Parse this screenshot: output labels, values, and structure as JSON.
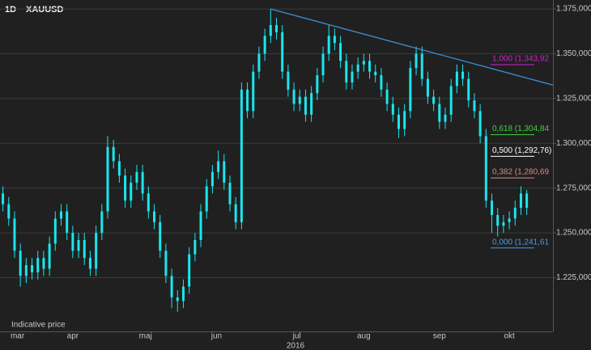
{
  "chart_data": {
    "type": "candlestick",
    "interval": "1D",
    "title": "XAUUSD",
    "note": "Indicative price",
    "x_label": "2016",
    "color": "#19e6ee",
    "x": [
      0,
      1,
      2,
      3,
      4,
      5,
      6,
      7,
      8,
      9,
      10,
      11,
      12,
      13,
      14,
      15,
      16,
      17,
      18,
      19,
      20,
      21,
      22,
      23,
      24,
      25,
      26,
      27,
      28,
      29,
      30,
      31,
      32,
      33,
      34,
      35,
      36,
      37,
      38,
      39,
      40,
      41,
      42,
      43,
      44,
      45,
      46,
      47,
      48,
      49,
      50,
      51,
      52,
      53,
      54,
      55,
      56,
      57,
      58,
      59,
      60,
      61,
      62,
      63,
      64,
      65,
      66,
      67,
      68,
      69,
      70,
      71,
      72,
      73,
      74,
      75,
      76,
      77,
      78,
      79,
      80,
      81,
      82,
      83,
      84,
      85,
      86,
      87,
      88,
      89,
      90
    ],
    "open": [
      1272,
      1266,
      1258,
      1240,
      1226,
      1232,
      1228,
      1236,
      1230,
      1244,
      1258,
      1262,
      1250,
      1240,
      1246,
      1236,
      1230,
      1250,
      1262,
      1298,
      1290,
      1282,
      1268,
      1278,
      1284,
      1272,
      1262,
      1256,
      1240,
      1226,
      1214,
      1212,
      1220,
      1238,
      1246,
      1262,
      1276,
      1284,
      1290,
      1278,
      1266,
      1256,
      1330,
      1318,
      1340,
      1350,
      1360,
      1366,
      1362,
      1340,
      1330,
      1322,
      1326,
      1316,
      1328,
      1338,
      1350,
      1360,
      1356,
      1346,
      1334,
      1340,
      1344,
      1346,
      1340,
      1338,
      1330,
      1322,
      1316,
      1308,
      1318,
      1342,
      1350,
      1336,
      1326,
      1322,
      1312,
      1316,
      1332,
      1340,
      1336,
      1324,
      1318,
      1304,
      1268,
      1260,
      1254,
      1256,
      1258,
      1264,
      1272
    ],
    "high": [
      1276,
      1270,
      1262,
      1244,
      1236,
      1236,
      1240,
      1240,
      1248,
      1262,
      1266,
      1266,
      1254,
      1250,
      1250,
      1240,
      1254,
      1266,
      1304,
      1302,
      1294,
      1286,
      1282,
      1288,
      1288,
      1276,
      1266,
      1260,
      1244,
      1230,
      1218,
      1224,
      1242,
      1250,
      1266,
      1280,
      1288,
      1296,
      1294,
      1282,
      1270,
      1334,
      1334,
      1344,
      1354,
      1364,
      1375,
      1370,
      1366,
      1344,
      1334,
      1330,
      1330,
      1332,
      1342,
      1354,
      1366,
      1364,
      1360,
      1350,
      1344,
      1348,
      1350,
      1350,
      1344,
      1342,
      1334,
      1326,
      1320,
      1322,
      1346,
      1354,
      1354,
      1340,
      1330,
      1326,
      1320,
      1336,
      1344,
      1344,
      1340,
      1328,
      1322,
      1308,
      1272,
      1264,
      1260,
      1262,
      1268,
      1276,
      1274
    ],
    "low": [
      1262,
      1254,
      1236,
      1220,
      1222,
      1224,
      1224,
      1226,
      1226,
      1240,
      1254,
      1246,
      1236,
      1236,
      1232,
      1226,
      1226,
      1246,
      1258,
      1286,
      1278,
      1264,
      1264,
      1274,
      1268,
      1258,
      1252,
      1236,
      1222,
      1208,
      1206,
      1208,
      1216,
      1234,
      1242,
      1258,
      1272,
      1280,
      1274,
      1262,
      1252,
      1252,
      1314,
      1314,
      1336,
      1346,
      1356,
      1358,
      1336,
      1326,
      1318,
      1318,
      1312,
      1312,
      1324,
      1334,
      1346,
      1352,
      1342,
      1330,
      1330,
      1336,
      1340,
      1336,
      1334,
      1326,
      1318,
      1312,
      1303,
      1304,
      1314,
      1338,
      1332,
      1322,
      1318,
      1308,
      1308,
      1312,
      1328,
      1332,
      1320,
      1314,
      1300,
      1264,
      1250,
      1248,
      1250,
      1252,
      1254,
      1260,
      1260
    ],
    "close": [
      1266,
      1258,
      1240,
      1226,
      1232,
      1228,
      1236,
      1230,
      1244,
      1258,
      1262,
      1250,
      1240,
      1246,
      1236,
      1230,
      1250,
      1262,
      1298,
      1290,
      1282,
      1268,
      1278,
      1284,
      1272,
      1262,
      1256,
      1240,
      1226,
      1214,
      1212,
      1220,
      1238,
      1246,
      1262,
      1276,
      1284,
      1290,
      1278,
      1266,
      1256,
      1330,
      1318,
      1340,
      1350,
      1360,
      1366,
      1362,
      1340,
      1330,
      1322,
      1326,
      1316,
      1328,
      1338,
      1350,
      1360,
      1356,
      1346,
      1334,
      1340,
      1344,
      1346,
      1340,
      1338,
      1330,
      1322,
      1316,
      1308,
      1318,
      1342,
      1350,
      1336,
      1326,
      1322,
      1312,
      1316,
      1332,
      1340,
      1336,
      1324,
      1318,
      1304,
      1268,
      1260,
      1254,
      1256,
      1258,
      1264,
      1272,
      1264
    ],
    "xlim": [
      -0.5,
      94.5
    ],
    "xticks": [
      {
        "value": 2.5,
        "label": "mar"
      },
      {
        "value": 12,
        "label": "apr"
      },
      {
        "value": 24.5,
        "label": "maj"
      },
      {
        "value": 36.7,
        "label": "jun"
      },
      {
        "value": 50.5,
        "label": "jul"
      },
      {
        "value": 62,
        "label": "aug"
      },
      {
        "value": 75,
        "label": "sep"
      },
      {
        "value": 87,
        "label": "okt"
      }
    ],
    "ylim": [
      1195,
      1380
    ],
    "yticks": [
      {
        "value": 1225,
        "label": "1.225,000"
      },
      {
        "value": 1250,
        "label": "1.250,000"
      },
      {
        "value": 1275,
        "label": "1.275,000"
      },
      {
        "value": 1300,
        "label": "1.300,000"
      },
      {
        "value": 1325,
        "label": "1.325,000"
      },
      {
        "value": 1350,
        "label": "1.350,000"
      },
      {
        "value": 1375,
        "label": "1.375,000"
      }
    ],
    "grid": true,
    "trendline": {
      "x": [
        46,
        94.5
      ],
      "y": [
        1375,
        1332.5
      ],
      "color": "#3a8fd8"
    },
    "fib_levels": [
      {
        "label": "1,000 (1,343,92",
        "value": 1343.92,
        "color": "#d21fd2"
      },
      {
        "label": "0,618 (1,304,84",
        "value": 1304.84,
        "color": "#3fd43f"
      },
      {
        "label": "0,500 (1,292,76)",
        "value": 1292.76,
        "color": "#ffffff"
      },
      {
        "label": "0,382 (1,280,69",
        "value": 1280.69,
        "color": "#d88a8a"
      },
      {
        "label": "0,000 (1,241,61",
        "value": 1241.61,
        "color": "#4a98e8"
      }
    ]
  }
}
